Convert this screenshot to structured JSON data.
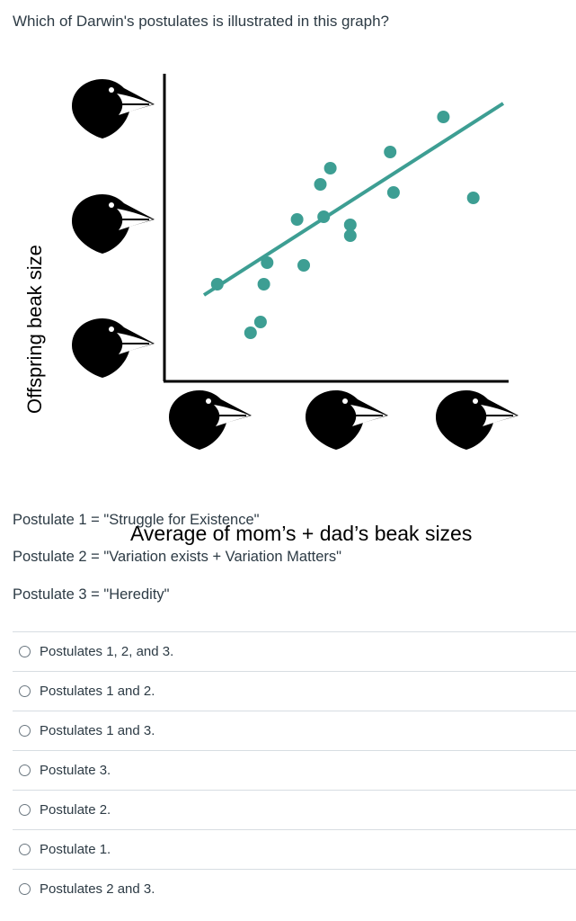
{
  "question": {
    "text": "Which of Darwin's postulates is illustrated in this graph?"
  },
  "chart_data": {
    "type": "scatter",
    "xlabel": "Average of mom’s + dad’s beak sizes",
    "ylabel": "Offspring beak size",
    "point_color": "#3d9e93",
    "line_color": "#3d9e93",
    "points": [
      [
        0.14,
        0.28
      ],
      [
        0.24,
        0.1
      ],
      [
        0.27,
        0.14
      ],
      [
        0.28,
        0.28
      ],
      [
        0.29,
        0.36
      ],
      [
        0.38,
        0.52
      ],
      [
        0.4,
        0.35
      ],
      [
        0.45,
        0.65
      ],
      [
        0.46,
        0.53
      ],
      [
        0.48,
        0.71
      ],
      [
        0.54,
        0.46
      ],
      [
        0.54,
        0.5
      ],
      [
        0.66,
        0.77
      ],
      [
        0.67,
        0.62
      ],
      [
        0.82,
        0.9
      ],
      [
        0.91,
        0.6
      ]
    ],
    "trend_line": {
      "x": [
        0.1,
        1.0
      ],
      "y": [
        0.24,
        0.95
      ]
    },
    "x_icons": [
      "small-beak-bird",
      "medium-beak-bird",
      "large-beak-bird"
    ],
    "y_icons": [
      "large-beak-bird",
      "medium-beak-bird",
      "small-beak-bird"
    ]
  },
  "postulates": [
    "Postulate 1 = \"Struggle for Existence\"",
    "Postulate 2 = \"Variation exists + Variation Matters\"",
    "Postulate 3 = \"Heredity\""
  ],
  "answers": [
    "Postulates 1, 2, and 3.",
    "Postulates 1 and 2.",
    "Postulates 1 and 3.",
    "Postulate 3.",
    "Postulate 2.",
    "Postulate 1.",
    "Postulates 2 and 3."
  ]
}
